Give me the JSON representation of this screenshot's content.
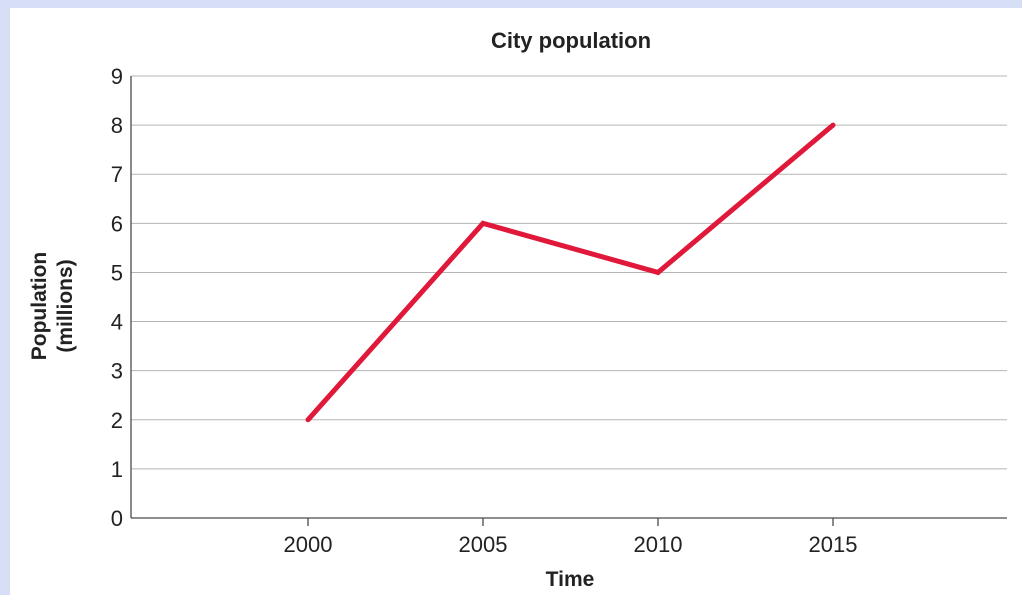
{
  "chart_data": {
    "type": "line",
    "title": "City population",
    "xlabel": "Time",
    "ylabel_lines": [
      "Population",
      "(millions)"
    ],
    "categories": [
      "2000",
      "2005",
      "2010",
      "2015"
    ],
    "series": [
      {
        "values": [
          2,
          6,
          5,
          8
        ],
        "color": "#e0183a"
      }
    ],
    "ylim": [
      0,
      9
    ],
    "yticks": [
      "0",
      "1",
      "2",
      "3",
      "4",
      "5",
      "6",
      "7",
      "8",
      "9"
    ],
    "grid": true,
    "legend": "none"
  },
  "colors": {
    "page_background": "#d6dff6",
    "plot_background": "#ffffff",
    "series": "#e0183a"
  }
}
